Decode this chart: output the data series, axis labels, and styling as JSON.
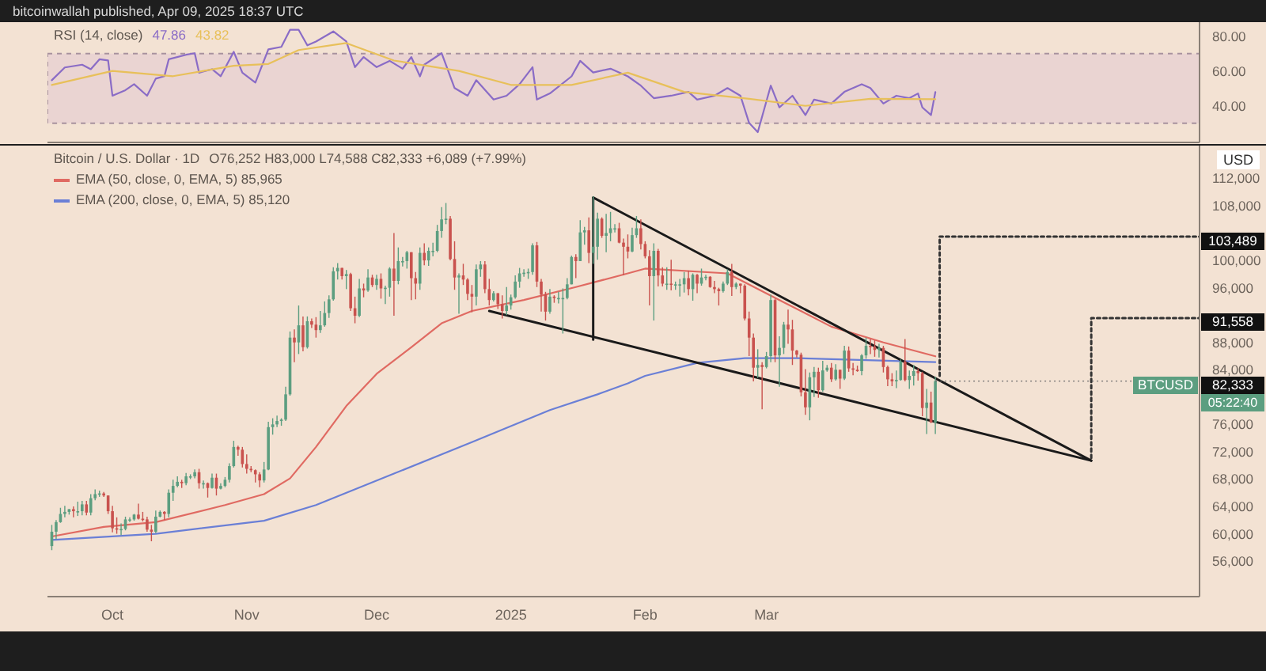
{
  "chart_data": [
    {
      "type": "line",
      "title": "RSI (14, close)",
      "annotations": [
        "bitcoinwallah published, Apr 09, 2025 18:37 UTC"
      ],
      "xlim": [
        "2024-09-16",
        "2025-06-09"
      ],
      "ylim": [
        19,
        88
      ],
      "yticks": [
        {
          "value": 40,
          "label": "40.00"
        },
        {
          "value": 60,
          "label": "60.00"
        },
        {
          "value": 80,
          "label": "80.00"
        }
      ],
      "tick_labels": "y",
      "legend": "top left",
      "bands": [
        {
          "axis": "y",
          "from": 30,
          "to": 70,
          "color": "#e6cfd2"
        }
      ],
      "series": [
        {
          "name": "47.86",
          "color": "#8a6cc6",
          "x": [
            "2024-09-17",
            "2024-09-20",
            "2024-09-24",
            "2024-09-26",
            "2024-09-28",
            "2024-09-30",
            "2024-10-01",
            "2024-10-04",
            "2024-10-06",
            "2024-10-09",
            "2024-10-11",
            "2024-10-13",
            "2024-10-14",
            "2024-10-18",
            "2024-10-20",
            "2024-10-21",
            "2024-10-24",
            "2024-10-26",
            "2024-10-29",
            "2024-10-31",
            "2024-11-03",
            "2024-11-06",
            "2024-11-09",
            "2024-11-11",
            "2024-11-13",
            "2024-11-15",
            "2024-11-17",
            "2024-11-21",
            "2024-11-24",
            "2024-11-26",
            "2024-11-28",
            "2024-12-01",
            "2024-12-04",
            "2024-12-07",
            "2024-12-09",
            "2024-12-11",
            "2024-12-12",
            "2024-12-16",
            "2024-12-19",
            "2024-12-22",
            "2024-12-24",
            "2024-12-28",
            "2024-12-31",
            "2025-01-03",
            "2025-01-06",
            "2025-01-07",
            "2025-01-10",
            "2025-01-15",
            "2025-01-17",
            "2025-01-20",
            "2025-01-24",
            "2025-01-28",
            "2025-01-31",
            "2025-02-03",
            "2025-02-07",
            "2025-02-11",
            "2025-02-13",
            "2025-02-17",
            "2025-02-20",
            "2025-02-23",
            "2025-02-25",
            "2025-02-27",
            "2025-03-02",
            "2025-03-04",
            "2025-03-07",
            "2025-03-10",
            "2025-03-12",
            "2025-03-16",
            "2025-03-19",
            "2025-03-23",
            "2025-03-25",
            "2025-03-28",
            "2025-03-31",
            "2025-04-03",
            "2025-04-05",
            "2025-04-06",
            "2025-04-08",
            "2025-04-09"
          ],
          "values": [
            54.7,
            62,
            63.6,
            61,
            66.7,
            66,
            45.8,
            49,
            52.4,
            45.8,
            55.6,
            57,
            66.7,
            69.3,
            70.2,
            59,
            61,
            57,
            71,
            59,
            53.3,
            72.4,
            73.8,
            83.6,
            83.6,
            74.7,
            76.9,
            82.7,
            76.9,
            62.2,
            68,
            62.2,
            65.8,
            61.3,
            68,
            56.9,
            63.6,
            70.2,
            50.2,
            45.8,
            54.7,
            43.6,
            45.8,
            52.4,
            62.2,
            43.6,
            47.1,
            56.9,
            65.8,
            59.1,
            61.3,
            56.9,
            51.6,
            44.4,
            45.8,
            48,
            43.6,
            45.8,
            50.2,
            45.8,
            30.2,
            24.9,
            51.6,
            39.1,
            45.8,
            34.7,
            43.6,
            41.3,
            48,
            52.4,
            50.2,
            41.3,
            45.8,
            44.4,
            47.1,
            39.1,
            34.7,
            47.86
          ]
        },
        {
          "name": "43.82",
          "color": "#e8c05a",
          "x": [
            "2024-09-17",
            "2024-10-01",
            "2024-10-15",
            "2024-10-29",
            "2024-11-06",
            "2024-11-13",
            "2024-11-24",
            "2024-12-05",
            "2024-12-20",
            "2025-01-01",
            "2025-01-15",
            "2025-01-28",
            "2025-02-10",
            "2025-02-25",
            "2025-03-10",
            "2025-03-25",
            "2025-04-09"
          ],
          "values": [
            52,
            60,
            57,
            63,
            64,
            72,
            76,
            66,
            60,
            52,
            52,
            59,
            48,
            44,
            40,
            44,
            43.82
          ]
        }
      ]
    },
    {
      "type": "candlestick",
      "title": "Bitcoin / U.S. Dollar · 1D",
      "subtitle": "O76,252 H83,000 L74,588 C82,333 +6,089 (+7.99%)",
      "ylabel": "USD",
      "legend": "top left",
      "xlim": [
        "2024-09-16",
        "2025-06-09"
      ],
      "xticks": [
        {
          "value": "2024-10-01",
          "label": "Oct"
        },
        {
          "value": "2024-11-01",
          "label": "Nov"
        },
        {
          "value": "2024-12-01",
          "label": "Dec"
        },
        {
          "value": "2025-01-01",
          "label": "2025"
        },
        {
          "value": "2025-02-01",
          "label": "Feb"
        },
        {
          "value": "2025-03-01",
          "label": "Mar"
        }
      ],
      "ylim": [
        50800,
        116800
      ],
      "yticks": [
        {
          "value": 56000,
          "label": "56,000"
        },
        {
          "value": 60000,
          "label": "60,000"
        },
        {
          "value": 64000,
          "label": "64,000"
        },
        {
          "value": 68000,
          "label": "68,000"
        },
        {
          "value": 72000,
          "label": "72,000"
        },
        {
          "value": 76000,
          "label": "76,000"
        },
        {
          "value": 84000,
          "label": "84,000"
        },
        {
          "value": 88000,
          "label": "88,000"
        },
        {
          "value": 96000,
          "label": "96,000"
        },
        {
          "value": 100000,
          "label": "100,000"
        },
        {
          "value": 108000,
          "label": "108,000"
        },
        {
          "value": 112000,
          "label": "112,000"
        }
      ],
      "annotations": [
        {
          "text": "103,489",
          "x": "2025-06-09",
          "y": 103489
        },
        {
          "text": "91,558",
          "x": "2025-06-09",
          "y": 91558
        },
        {
          "text": "82,333",
          "x": "2025-04-09",
          "y": 82333
        },
        "BTCUSD",
        "05:22:40"
      ],
      "x": [
        "2024-09-17",
        "2024-09-18",
        "2024-09-19",
        "2024-09-20",
        "2024-09-21",
        "2024-09-22",
        "2024-09-23",
        "2024-09-24",
        "2024-09-25",
        "2024-09-26",
        "2024-09-27",
        "2024-09-28",
        "2024-09-29",
        "2024-09-30",
        "2024-10-01",
        "2024-10-02",
        "2024-10-03",
        "2024-10-04",
        "2024-10-05",
        "2024-10-06",
        "2024-10-07",
        "2024-10-08",
        "2024-10-09",
        "2024-10-10",
        "2024-10-11",
        "2024-10-12",
        "2024-10-13",
        "2024-10-14",
        "2024-10-15",
        "2024-10-16",
        "2024-10-17",
        "2024-10-18",
        "2024-10-19",
        "2024-10-20",
        "2024-10-21",
        "2024-10-22",
        "2024-10-23",
        "2024-10-24",
        "2024-10-25",
        "2024-10-26",
        "2024-10-27",
        "2024-10-28",
        "2024-10-29",
        "2024-10-30",
        "2024-10-31",
        "2024-11-01",
        "2024-11-02",
        "2024-11-03",
        "2024-11-04",
        "2024-11-05",
        "2024-11-06",
        "2024-11-07",
        "2024-11-08",
        "2024-11-09",
        "2024-11-10",
        "2024-11-11",
        "2024-11-12",
        "2024-11-13",
        "2024-11-14",
        "2024-11-15",
        "2024-11-16",
        "2024-11-17",
        "2024-11-18",
        "2024-11-19",
        "2024-11-20",
        "2024-11-21",
        "2024-11-22",
        "2024-11-23",
        "2024-11-24",
        "2024-11-25",
        "2024-11-26",
        "2024-11-27",
        "2024-11-28",
        "2024-11-29",
        "2024-11-30",
        "2024-12-01",
        "2024-12-02",
        "2024-12-03",
        "2024-12-04",
        "2024-12-05",
        "2024-12-06",
        "2024-12-07",
        "2024-12-08",
        "2024-12-09",
        "2024-12-10",
        "2024-12-11",
        "2024-12-12",
        "2024-12-13",
        "2024-12-14",
        "2024-12-15",
        "2024-12-16",
        "2024-12-17",
        "2024-12-18",
        "2024-12-19",
        "2024-12-20",
        "2024-12-21",
        "2024-12-22",
        "2024-12-23",
        "2024-12-24",
        "2024-12-25",
        "2024-12-26",
        "2024-12-27",
        "2024-12-28",
        "2024-12-29",
        "2024-12-30",
        "2024-12-31",
        "2025-01-01",
        "2025-01-02",
        "2025-01-03",
        "2025-01-04",
        "2025-01-05",
        "2025-01-06",
        "2025-01-07",
        "2025-01-08",
        "2025-01-09",
        "2025-01-10",
        "2025-01-11",
        "2025-01-12",
        "2025-01-13",
        "2025-01-14",
        "2025-01-15",
        "2025-01-16",
        "2025-01-17",
        "2025-01-18",
        "2025-01-19",
        "2025-01-20",
        "2025-01-21",
        "2025-01-22",
        "2025-01-23",
        "2025-01-24",
        "2025-01-25",
        "2025-01-26",
        "2025-01-27",
        "2025-01-28",
        "2025-01-29",
        "2025-01-30",
        "2025-01-31",
        "2025-02-01",
        "2025-02-02",
        "2025-02-03",
        "2025-02-04",
        "2025-02-05",
        "2025-02-06",
        "2025-02-07",
        "2025-02-08",
        "2025-02-09",
        "2025-02-10",
        "2025-02-11",
        "2025-02-12",
        "2025-02-13",
        "2025-02-14",
        "2025-02-15",
        "2025-02-16",
        "2025-02-17",
        "2025-02-18",
        "2025-02-19",
        "2025-02-20",
        "2025-02-21",
        "2025-02-22",
        "2025-02-23",
        "2025-02-24",
        "2025-02-25",
        "2025-02-26",
        "2025-02-27",
        "2025-02-28",
        "2025-03-01",
        "2025-03-02",
        "2025-03-03",
        "2025-03-04",
        "2025-03-05",
        "2025-03-06",
        "2025-03-07",
        "2025-03-08",
        "2025-03-09",
        "2025-03-10",
        "2025-03-11",
        "2025-03-12",
        "2025-03-13",
        "2025-03-14",
        "2025-03-15",
        "2025-03-16",
        "2025-03-17",
        "2025-03-18",
        "2025-03-19",
        "2025-03-20",
        "2025-03-21",
        "2025-03-22",
        "2025-03-23",
        "2025-03-24",
        "2025-03-25",
        "2025-03-26",
        "2025-03-27",
        "2025-03-28",
        "2025-03-29",
        "2025-03-30",
        "2025-03-31",
        "2025-04-01",
        "2025-04-02",
        "2025-04-03",
        "2025-04-04",
        "2025-04-05",
        "2025-04-06",
        "2025-04-07",
        "2025-04-08",
        "2025-04-09"
      ],
      "ohlc": [
        [
          58200,
          61300,
          57600,
          60300
        ],
        [
          60300,
          62000,
          59200,
          61700
        ],
        [
          61700,
          63800,
          61600,
          62900
        ],
        [
          62900,
          64100,
          62400,
          63200
        ],
        [
          63200,
          63600,
          62800,
          63600
        ],
        [
          63600,
          64000,
          62400,
          63300
        ],
        [
          63300,
          64700,
          62600,
          63300
        ],
        [
          63300,
          64800,
          62700,
          64300
        ],
        [
          64300,
          64800,
          62700,
          63100
        ],
        [
          63100,
          65800,
          62700,
          65200
        ],
        [
          65200,
          66500,
          64900,
          65800
        ],
        [
          65800,
          66300,
          65400,
          65900
        ],
        [
          65900,
          66100,
          65400,
          65600
        ],
        [
          65600,
          65600,
          62900,
          63300
        ],
        [
          63300,
          64100,
          60200,
          60800
        ],
        [
          60800,
          62400,
          60000,
          60600
        ],
        [
          60600,
          61500,
          59800,
          60700
        ],
        [
          60700,
          62500,
          60500,
          62100
        ],
        [
          62100,
          62400,
          61700,
          62100
        ],
        [
          62100,
          62900,
          61900,
          62800
        ],
        [
          62800,
          64400,
          62100,
          62200
        ],
        [
          62200,
          63200,
          61800,
          62100
        ],
        [
          62100,
          62500,
          60300,
          60600
        ],
        [
          60600,
          61300,
          58900,
          60300
        ],
        [
          60300,
          63400,
          60100,
          62500
        ],
        [
          62500,
          63400,
          62400,
          63200
        ],
        [
          63200,
          63300,
          62000,
          62900
        ],
        [
          62900,
          66500,
          62400,
          66000
        ],
        [
          66000,
          67900,
          64800,
          67000
        ],
        [
          67000,
          68400,
          66800,
          67600
        ],
        [
          67600,
          67900,
          66700,
          67400
        ],
        [
          67400,
          68900,
          67100,
          68400
        ],
        [
          68400,
          68700,
          68000,
          68400
        ],
        [
          68400,
          69400,
          68100,
          69000
        ],
        [
          69000,
          69500,
          66600,
          67400
        ],
        [
          67400,
          67800,
          66600,
          67400
        ],
        [
          67400,
          67500,
          65300,
          66700
        ],
        [
          66700,
          68800,
          66600,
          68200
        ],
        [
          68200,
          68800,
          65600,
          66600
        ],
        [
          66600,
          67400,
          66500,
          67000
        ],
        [
          67000,
          68300,
          66800,
          67900
        ],
        [
          67900,
          70300,
          67500,
          69900
        ],
        [
          69900,
          73600,
          69700,
          72700
        ],
        [
          72700,
          72900,
          71400,
          72300
        ],
        [
          72300,
          72700,
          69700,
          70200
        ],
        [
          70200,
          71600,
          68800,
          69500
        ],
        [
          69500,
          69900,
          69000,
          69300
        ],
        [
          69300,
          69400,
          67500,
          68700
        ],
        [
          68700,
          69000,
          66800,
          67800
        ],
        [
          67800,
          70500,
          67500,
          69400
        ],
        [
          69400,
          76400,
          69300,
          75600
        ],
        [
          75600,
          76900,
          74500,
          76000
        ],
        [
          76000,
          77300,
          75600,
          76500
        ],
        [
          76500,
          76900,
          75800,
          76700
        ],
        [
          76700,
          81500,
          76500,
          80400
        ],
        [
          80400,
          89600,
          80200,
          88700
        ],
        [
          88700,
          89900,
          85100,
          88000
        ],
        [
          88000,
          93400,
          86300,
          90500
        ],
        [
          90500,
          91800,
          86700,
          87300
        ],
        [
          87300,
          91800,
          87100,
          91100
        ],
        [
          91100,
          91500,
          90100,
          90600
        ],
        [
          90600,
          91700,
          88700,
          89800
        ],
        [
          89800,
          92600,
          89400,
          90500
        ],
        [
          90500,
          94000,
          90300,
          92300
        ],
        [
          92300,
          94900,
          91600,
          94300
        ],
        [
          94300,
          99000,
          94100,
          98400
        ],
        [
          98400,
          99600,
          97200,
          98900
        ],
        [
          98900,
          98900,
          97200,
          97700
        ],
        [
          97700,
          98600,
          95800,
          98000
        ],
        [
          98000,
          98200,
          92600,
          93000
        ],
        [
          93000,
          94700,
          90800,
          91900
        ],
        [
          91900,
          97300,
          91700,
          95900
        ],
        [
          95900,
          96600,
          94600,
          95600
        ],
        [
          95600,
          98700,
          95400,
          97500
        ],
        [
          97500,
          97900,
          96100,
          96400
        ],
        [
          96400,
          97900,
          95700,
          97300
        ],
        [
          97300,
          98100,
          94400,
          95900
        ],
        [
          95900,
          96300,
          93600,
          96000
        ],
        [
          96000,
          99000,
          94700,
          98800
        ],
        [
          98800,
          104000,
          91900,
          97000
        ],
        [
          97000,
          101900,
          96500,
          99900
        ],
        [
          99900,
          100500,
          99100,
          99900
        ],
        [
          99900,
          101400,
          98800,
          101200
        ],
        [
          101200,
          101200,
          94200,
          97400
        ],
        [
          97400,
          98300,
          94300,
          96600
        ],
        [
          96600,
          101900,
          95700,
          101100
        ],
        [
          101100,
          102500,
          99300,
          100000
        ],
        [
          100000,
          101900,
          99200,
          101400
        ],
        [
          101400,
          102600,
          100600,
          101400
        ],
        [
          101400,
          105200,
          101200,
          104300
        ],
        [
          104300,
          107800,
          103300,
          106000
        ],
        [
          106000,
          108400,
          105300,
          106100
        ],
        [
          106100,
          106500,
          100000,
          100200
        ],
        [
          100200,
          102800,
          95700,
          97500
        ],
        [
          97500,
          98100,
          92200,
          97800
        ],
        [
          97800,
          99500,
          96400,
          97200
        ],
        [
          97200,
          97400,
          94200,
          95100
        ],
        [
          95100,
          96400,
          92400,
          94700
        ],
        [
          94700,
          99400,
          93400,
          98700
        ],
        [
          98700,
          99900,
          97600,
          99400
        ],
        [
          99400,
          99900,
          95200,
          95800
        ],
        [
          95800,
          97300,
          93400,
          94200
        ],
        [
          94200,
          95500,
          94000,
          95200
        ],
        [
          95200,
          95200,
          92900,
          93600
        ],
        [
          93600,
          94900,
          91500,
          92600
        ],
        [
          92600,
          96100,
          92000,
          93400
        ],
        [
          93400,
          95000,
          92800,
          94600
        ],
        [
          94600,
          97800,
          94400,
          96900
        ],
        [
          96900,
          98900,
          96000,
          98100
        ],
        [
          98100,
          98700,
          97600,
          98200
        ],
        [
          98200,
          98800,
          97300,
          98300
        ],
        [
          98300,
          102500,
          97900,
          102200
        ],
        [
          102200,
          102700,
          96100,
          96900
        ],
        [
          96900,
          97300,
          92500,
          95000
        ],
        [
          95000,
          95400,
          91200,
          92500
        ],
        [
          92500,
          95800,
          92200,
          94700
        ],
        [
          94700,
          94900,
          93800,
          94500
        ],
        [
          94500,
          95400,
          93700,
          94500
        ],
        [
          94500,
          95900,
          89300,
          94500
        ],
        [
          94500,
          97400,
          94300,
          96500
        ],
        [
          96500,
          100700,
          96500,
          100500
        ],
        [
          100500,
          100900,
          97400,
          99900
        ],
        [
          99900,
          105900,
          99900,
          104100
        ],
        [
          104100,
          104900,
          102300,
          104400
        ],
        [
          104400,
          106300,
          99600,
          101100
        ],
        [
          101100,
          109400,
          99500,
          102000
        ],
        [
          102000,
          107000,
          100100,
          106100
        ],
        [
          106100,
          106300,
          103300,
          103600
        ],
        [
          103600,
          106800,
          101200,
          104000
        ],
        [
          104000,
          107100,
          102800,
          104700
        ],
        [
          104700,
          105300,
          104100,
          104700
        ],
        [
          104700,
          105500,
          102500,
          102600
        ],
        [
          102600,
          103200,
          97800,
          102000
        ],
        [
          102000,
          103800,
          100300,
          101300
        ],
        [
          101300,
          104800,
          101200,
          103700
        ],
        [
          103700,
          106500,
          103300,
          104700
        ],
        [
          104700,
          106000,
          101600,
          102400
        ],
        [
          102400,
          102800,
          100300,
          100600
        ],
        [
          100600,
          101500,
          93400,
          97700
        ],
        [
          97700,
          102500,
          91200,
          101400
        ],
        [
          101400,
          101700,
          96200,
          97800
        ],
        [
          97800,
          99000,
          96200,
          96600
        ],
        [
          96600,
          99000,
          95700,
          96600
        ],
        [
          96600,
          100100,
          95600,
          96500
        ],
        [
          96500,
          96900,
          95700,
          96500
        ],
        [
          96500,
          97300,
          94700,
          96500
        ],
        [
          96500,
          98300,
          95300,
          97400
        ],
        [
          97400,
          98500,
          94900,
          95800
        ],
        [
          95800,
          98100,
          94100,
          97900
        ],
        [
          97900,
          98000,
          95200,
          96600
        ],
        [
          96600,
          98800,
          96300,
          97500
        ],
        [
          97500,
          97900,
          97100,
          97600
        ],
        [
          97600,
          97700,
          96000,
          96100
        ],
        [
          96100,
          97000,
          95200,
          95800
        ],
        [
          95800,
          96000,
          93400,
          95500
        ],
        [
          95500,
          96900,
          95300,
          96600
        ],
        [
          96600,
          98700,
          96400,
          98300
        ],
        [
          98300,
          99500,
          94800,
          96100
        ],
        [
          96100,
          96800,
          95800,
          96600
        ],
        [
          96600,
          96600,
          95200,
          96300
        ],
        [
          96300,
          96500,
          91200,
          91500
        ],
        [
          91500,
          92500,
          86000,
          88700
        ],
        [
          88700,
          89300,
          82300,
          84300
        ],
        [
          84300,
          87000,
          82800,
          84700
        ],
        [
          84700,
          85100,
          78200,
          84400
        ],
        [
          84400,
          86600,
          84200,
          86000
        ],
        [
          86000,
          95000,
          85100,
          94200
        ],
        [
          94200,
          94400,
          85100,
          86100
        ],
        [
          86100,
          88900,
          81500,
          87200
        ],
        [
          87200,
          91000,
          86300,
          90600
        ],
        [
          90600,
          92800,
          87800,
          89900
        ],
        [
          89900,
          91300,
          84700,
          86800
        ],
        [
          86800,
          86900,
          85800,
          86200
        ],
        [
          86200,
          86500,
          80100,
          80700
        ],
        [
          80700,
          84100,
          77400,
          78500
        ],
        [
          78500,
          83600,
          76600,
          82900
        ],
        [
          82900,
          84400,
          80000,
          83700
        ],
        [
          83700,
          84300,
          79900,
          81000
        ],
        [
          81000,
          85300,
          80800,
          83900
        ],
        [
          83900,
          84700,
          83700,
          84300
        ],
        [
          84300,
          85000,
          82200,
          82600
        ],
        [
          82600,
          84800,
          82400,
          84000
        ],
        [
          84000,
          84000,
          81200,
          82700
        ],
        [
          82700,
          87500,
          82500,
          86800
        ],
        [
          86800,
          87400,
          83700,
          84200
        ],
        [
          84200,
          85000,
          83200,
          84000
        ],
        [
          84000,
          84600,
          83700,
          83800
        ],
        [
          83800,
          86300,
          83200,
          86100
        ],
        [
          86100,
          88700,
          85600,
          87500
        ],
        [
          87500,
          88500,
          86300,
          87400
        ],
        [
          87400,
          88300,
          85900,
          86900
        ],
        [
          86900,
          87800,
          85800,
          87200
        ],
        [
          87200,
          87500,
          83600,
          84400
        ],
        [
          84400,
          84600,
          81600,
          82600
        ],
        [
          82600,
          83500,
          81600,
          82300
        ],
        [
          82300,
          83900,
          81300,
          82500
        ],
        [
          82500,
          85500,
          82400,
          85200
        ],
        [
          85200,
          88500,
          82300,
          82500
        ],
        [
          82500,
          83900,
          81200,
          83100
        ],
        [
          83100,
          84700,
          81700,
          83800
        ],
        [
          83800,
          84200,
          82400,
          83500
        ],
        [
          83500,
          83700,
          77200,
          78400
        ],
        [
          78400,
          81200,
          74600,
          79200
        ],
        [
          79200,
          80800,
          76200,
          76300
        ],
        [
          76252,
          83000,
          74588,
          82333
        ]
      ],
      "series": [
        {
          "type": "line",
          "name": "EMA (50, close, 0, EMA, 5) 85,965",
          "color": "#e06a62",
          "x": [
            "2024-09-17",
            "2024-09-29",
            "2024-10-11",
            "2024-10-27",
            "2024-11-05",
            "2024-11-11",
            "2024-11-17",
            "2024-11-24",
            "2024-12-01",
            "2024-12-09",
            "2024-12-16",
            "2024-12-23",
            "2025-01-04",
            "2025-01-16",
            "2025-01-28",
            "2025-02-01",
            "2025-02-20",
            "2025-03-04",
            "2025-03-16",
            "2025-03-28",
            "2025-04-09"
          ],
          "values": [
            59600,
            61000,
            61700,
            64200,
            65800,
            68100,
            72700,
            78700,
            83400,
            87300,
            90800,
            92600,
            94200,
            96100,
            98100,
            98800,
            98100,
            94200,
            90300,
            88000,
            85965
          ]
        },
        {
          "type": "line",
          "name": "EMA (200, close, 0, EMA, 5) 85,120",
          "color": "#6a7fd6",
          "x": [
            "2024-09-17",
            "2024-10-11",
            "2024-11-05",
            "2024-11-17",
            "2024-12-05",
            "2024-12-23",
            "2025-01-10",
            "2025-01-21",
            "2025-01-28",
            "2025-02-01",
            "2025-02-13",
            "2025-02-24",
            "2025-03-08",
            "2025-04-09"
          ],
          "values": [
            59100,
            60000,
            61900,
            64200,
            68800,
            73400,
            78100,
            80400,
            82000,
            83100,
            85000,
            85700,
            85700,
            85120
          ]
        },
        {
          "type": "line",
          "color": "#1a1a1a",
          "x": [
            "2025-01-20",
            "2025-05-15"
          ],
          "values": [
            109200,
            70700
          ]
        },
        {
          "type": "line",
          "color": "#1a1a1a",
          "x": [
            "2024-12-27",
            "2025-05-15"
          ],
          "values": [
            92600,
            70700
          ]
        },
        {
          "type": "line",
          "color": "#1a1a1a",
          "x": [
            "2025-01-20",
            "2025-01-20"
          ],
          "values": [
            88400,
            109200
          ]
        },
        {
          "type": "line",
          "color": "#333333",
          "line_style": "dotted",
          "x": [
            "2025-04-10",
            "2025-04-10",
            "2025-06-09"
          ],
          "values": [
            83100,
            103489,
            103489
          ]
        },
        {
          "type": "line",
          "color": "#333333",
          "line_style": "dotted",
          "x": [
            "2025-05-15",
            "2025-05-15",
            "2025-06-09"
          ],
          "values": [
            71100,
            91558,
            91558
          ]
        }
      ]
    }
  ]
}
